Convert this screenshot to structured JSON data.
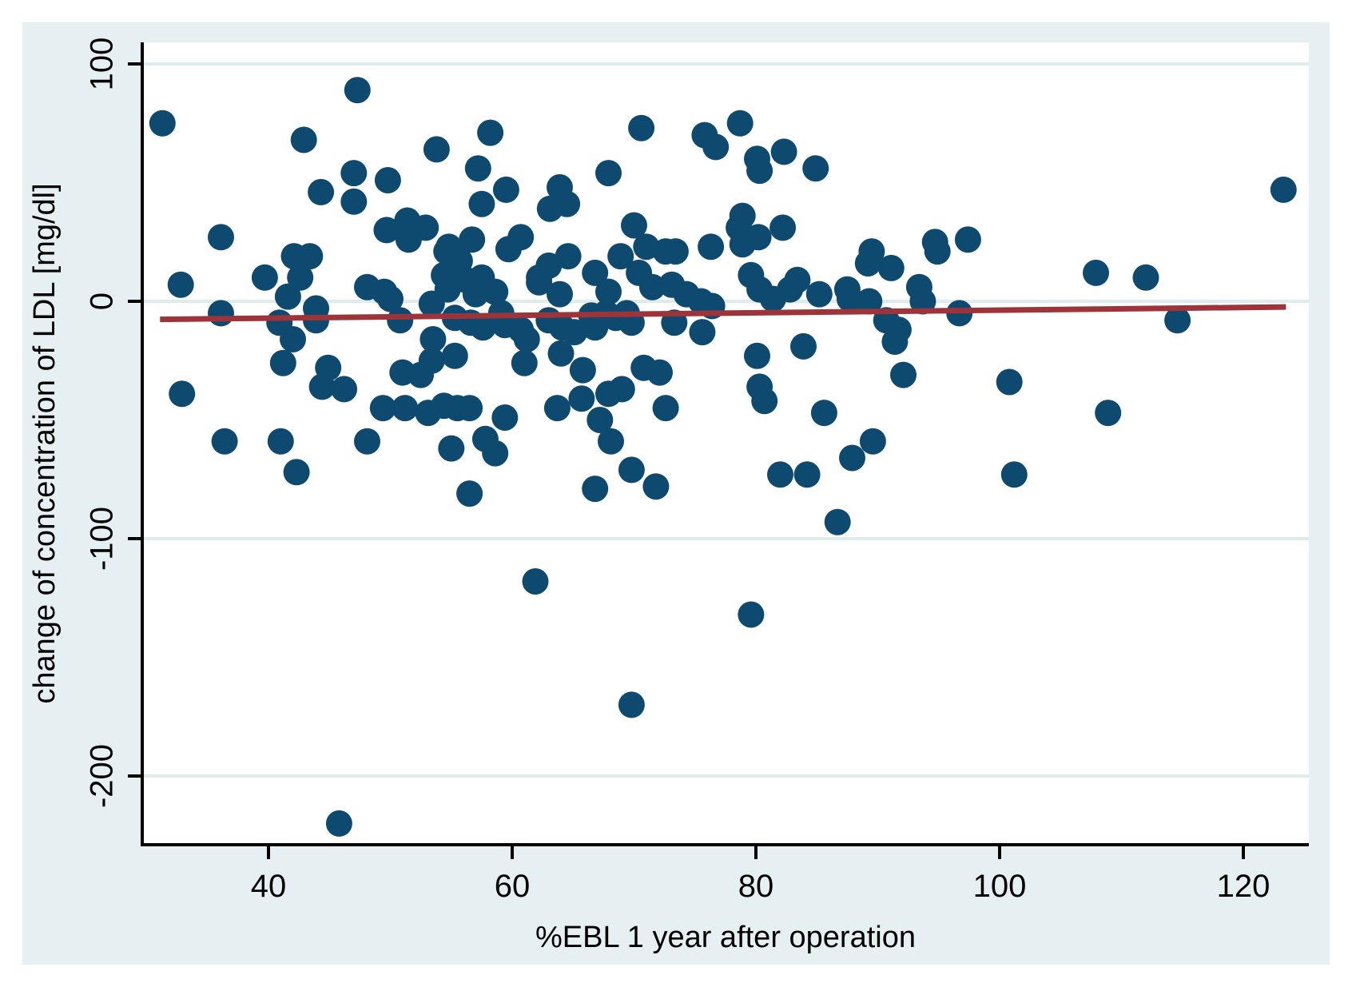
{
  "chart_data": {
    "type": "scatter",
    "title": "",
    "xlabel": "%EBL 1 year after operation",
    "ylabel": "change of concentration of LDL [mg/dl]",
    "x_ticks": [
      40,
      60,
      80,
      100,
      120
    ],
    "x_tick_labels": [
      "40",
      "60",
      "80",
      "100",
      "120"
    ],
    "y_ticks": [
      100,
      0,
      -100,
      -200
    ],
    "y_tick_labels": [
      "100",
      "0",
      "-100",
      "-200"
    ],
    "xlim": [
      29.7,
      126.0
    ],
    "ylim": [
      -229,
      109
    ],
    "grid": "horizontal",
    "legend": "none",
    "colors": {
      "point": "#0e4a6f",
      "fit_line": "#9d3439",
      "plot_bg": "#ffffff",
      "figure_bg": "#e6f0f2",
      "grid": "#dfecee",
      "axis": "#000000"
    },
    "fit_line": {
      "x1": 31.1,
      "y1": -7.6,
      "x2": 123.5,
      "y2": -2.4
    },
    "points": [
      [
        47.3,
        89
      ],
      [
        31.3,
        75
      ],
      [
        42.9,
        68
      ],
      [
        53.8,
        64
      ],
      [
        47,
        54
      ],
      [
        49.8,
        51
      ],
      [
        44.3,
        46
      ],
      [
        47,
        42
      ],
      [
        51.4,
        34
      ],
      [
        49.7,
        30
      ],
      [
        52.9,
        31
      ],
      [
        51.5,
        26
      ],
      [
        36.1,
        27
      ],
      [
        42.1,
        19
      ],
      [
        43.4,
        19
      ],
      [
        39.7,
        10
      ],
      [
        42.6,
        10
      ],
      [
        58.2,
        71
      ],
      [
        70.6,
        73
      ],
      [
        75.8,
        70
      ],
      [
        76.7,
        65
      ],
      [
        57.2,
        56
      ],
      [
        59.5,
        47
      ],
      [
        67.9,
        54
      ],
      [
        63.9,
        48
      ],
      [
        57.5,
        41
      ],
      [
        63.1,
        39
      ],
      [
        64.5,
        41
      ],
      [
        70,
        32
      ],
      [
        60.7,
        27
      ],
      [
        54.8,
        23
      ],
      [
        56.7,
        26
      ],
      [
        59.7,
        22
      ],
      [
        68.9,
        19
      ],
      [
        71,
        23
      ],
      [
        72.6,
        21
      ],
      [
        73.4,
        21
      ],
      [
        76.3,
        23
      ],
      [
        64.6,
        19
      ],
      [
        66.8,
        12
      ],
      [
        63,
        15
      ],
      [
        62.2,
        10
      ],
      [
        70.4,
        12
      ],
      [
        73.1,
        7
      ],
      [
        54.6,
        21
      ],
      [
        55.7,
        17
      ],
      [
        54.4,
        11
      ],
      [
        56.2,
        9
      ],
      [
        57.5,
        10
      ],
      [
        78.7,
        75
      ],
      [
        80.1,
        60
      ],
      [
        82.3,
        63
      ],
      [
        80.3,
        55
      ],
      [
        84.9,
        56
      ],
      [
        78.9,
        36
      ],
      [
        78.6,
        31
      ],
      [
        80.2,
        27
      ],
      [
        78.9,
        24
      ],
      [
        82.2,
        31
      ],
      [
        89.5,
        21
      ],
      [
        89.2,
        16
      ],
      [
        91.1,
        14
      ],
      [
        94.7,
        25
      ],
      [
        94.9,
        21
      ],
      [
        97.4,
        26
      ],
      [
        79.6,
        11
      ],
      [
        83.4,
        9
      ],
      [
        123.3,
        47
      ],
      [
        107.9,
        12
      ],
      [
        112,
        10
      ],
      [
        32.8,
        7
      ],
      [
        41.6,
        2
      ],
      [
        36.1,
        -5
      ],
      [
        43.9,
        -3
      ],
      [
        43.9,
        -8
      ],
      [
        40.9,
        -9
      ],
      [
        42,
        -16
      ],
      [
        41.2,
        -26
      ],
      [
        50.8,
        -8
      ],
      [
        53.4,
        -1
      ],
      [
        53.5,
        -16
      ],
      [
        53.4,
        -25
      ],
      [
        51,
        -30
      ],
      [
        52.5,
        -31
      ],
      [
        44.9,
        -28
      ],
      [
        44.4,
        -36
      ],
      [
        46.2,
        -37
      ],
      [
        49.4,
        -45
      ],
      [
        51.2,
        -45
      ],
      [
        53.1,
        -47
      ],
      [
        32.9,
        -39
      ],
      [
        36.4,
        -59
      ],
      [
        41,
        -59
      ],
      [
        48.1,
        -59
      ],
      [
        42.3,
        -72
      ],
      [
        48.1,
        6
      ],
      [
        49.5,
        4
      ],
      [
        50,
        1
      ],
      [
        54.7,
        5
      ],
      [
        57,
        3
      ],
      [
        58.6,
        4
      ],
      [
        62.2,
        8
      ],
      [
        63.9,
        3
      ],
      [
        67.9,
        4
      ],
      [
        71.5,
        6
      ],
      [
        74.3,
        3
      ],
      [
        75.5,
        0
      ],
      [
        76.4,
        -2
      ],
      [
        55.3,
        -7
      ],
      [
        56.6,
        -9
      ],
      [
        57.6,
        -11
      ],
      [
        59.1,
        -5
      ],
      [
        59.4,
        -10
      ],
      [
        60.7,
        -12
      ],
      [
        61.2,
        -16
      ],
      [
        63,
        -8
      ],
      [
        64.1,
        -11
      ],
      [
        65.1,
        -13
      ],
      [
        66.5,
        -6
      ],
      [
        66.8,
        -11
      ],
      [
        67.7,
        -5
      ],
      [
        68.5,
        -7
      ],
      [
        69.4,
        -5
      ],
      [
        69.8,
        -9
      ],
      [
        73.3,
        -9
      ],
      [
        75.6,
        -13
      ],
      [
        55.3,
        -23
      ],
      [
        61,
        -26
      ],
      [
        64,
        -22
      ],
      [
        65.8,
        -29
      ],
      [
        70.8,
        -28
      ],
      [
        72.1,
        -30
      ],
      [
        67.9,
        -39
      ],
      [
        69,
        -37
      ],
      [
        65.7,
        -41
      ],
      [
        63.7,
        -45
      ],
      [
        67.2,
        -50
      ],
      [
        72.6,
        -45
      ],
      [
        68.1,
        -59
      ],
      [
        54.4,
        -44
      ],
      [
        55.5,
        -45
      ],
      [
        56.5,
        -45
      ],
      [
        59.4,
        -49
      ],
      [
        57.8,
        -58
      ],
      [
        58.6,
        -64
      ],
      [
        55,
        -62
      ],
      [
        56.5,
        -81
      ],
      [
        66.8,
        -79
      ],
      [
        69.8,
        -71
      ],
      [
        71.8,
        -78
      ],
      [
        80.3,
        5
      ],
      [
        81.4,
        1
      ],
      [
        82.8,
        5
      ],
      [
        85.2,
        3
      ],
      [
        87.5,
        5
      ],
      [
        87.7,
        1
      ],
      [
        89.3,
        0
      ],
      [
        93.4,
        6
      ],
      [
        93.7,
        0
      ],
      [
        96.7,
        -5
      ],
      [
        83.9,
        -19
      ],
      [
        80.1,
        -23
      ],
      [
        80.3,
        -36
      ],
      [
        80.7,
        -42
      ],
      [
        90.7,
        -8
      ],
      [
        91.7,
        -12
      ],
      [
        91.4,
        -17
      ],
      [
        92.1,
        -31
      ],
      [
        100.8,
        -34
      ],
      [
        85.6,
        -47
      ],
      [
        89.6,
        -59
      ],
      [
        87.9,
        -66
      ],
      [
        82,
        -73
      ],
      [
        84.2,
        -73
      ],
      [
        101.2,
        -73
      ],
      [
        86.7,
        -93
      ],
      [
        114.6,
        -8
      ],
      [
        108.9,
        -47
      ],
      [
        61.9,
        -118
      ],
      [
        79.6,
        -132
      ],
      [
        69.8,
        -170
      ],
      [
        45.8,
        -220
      ]
    ]
  }
}
